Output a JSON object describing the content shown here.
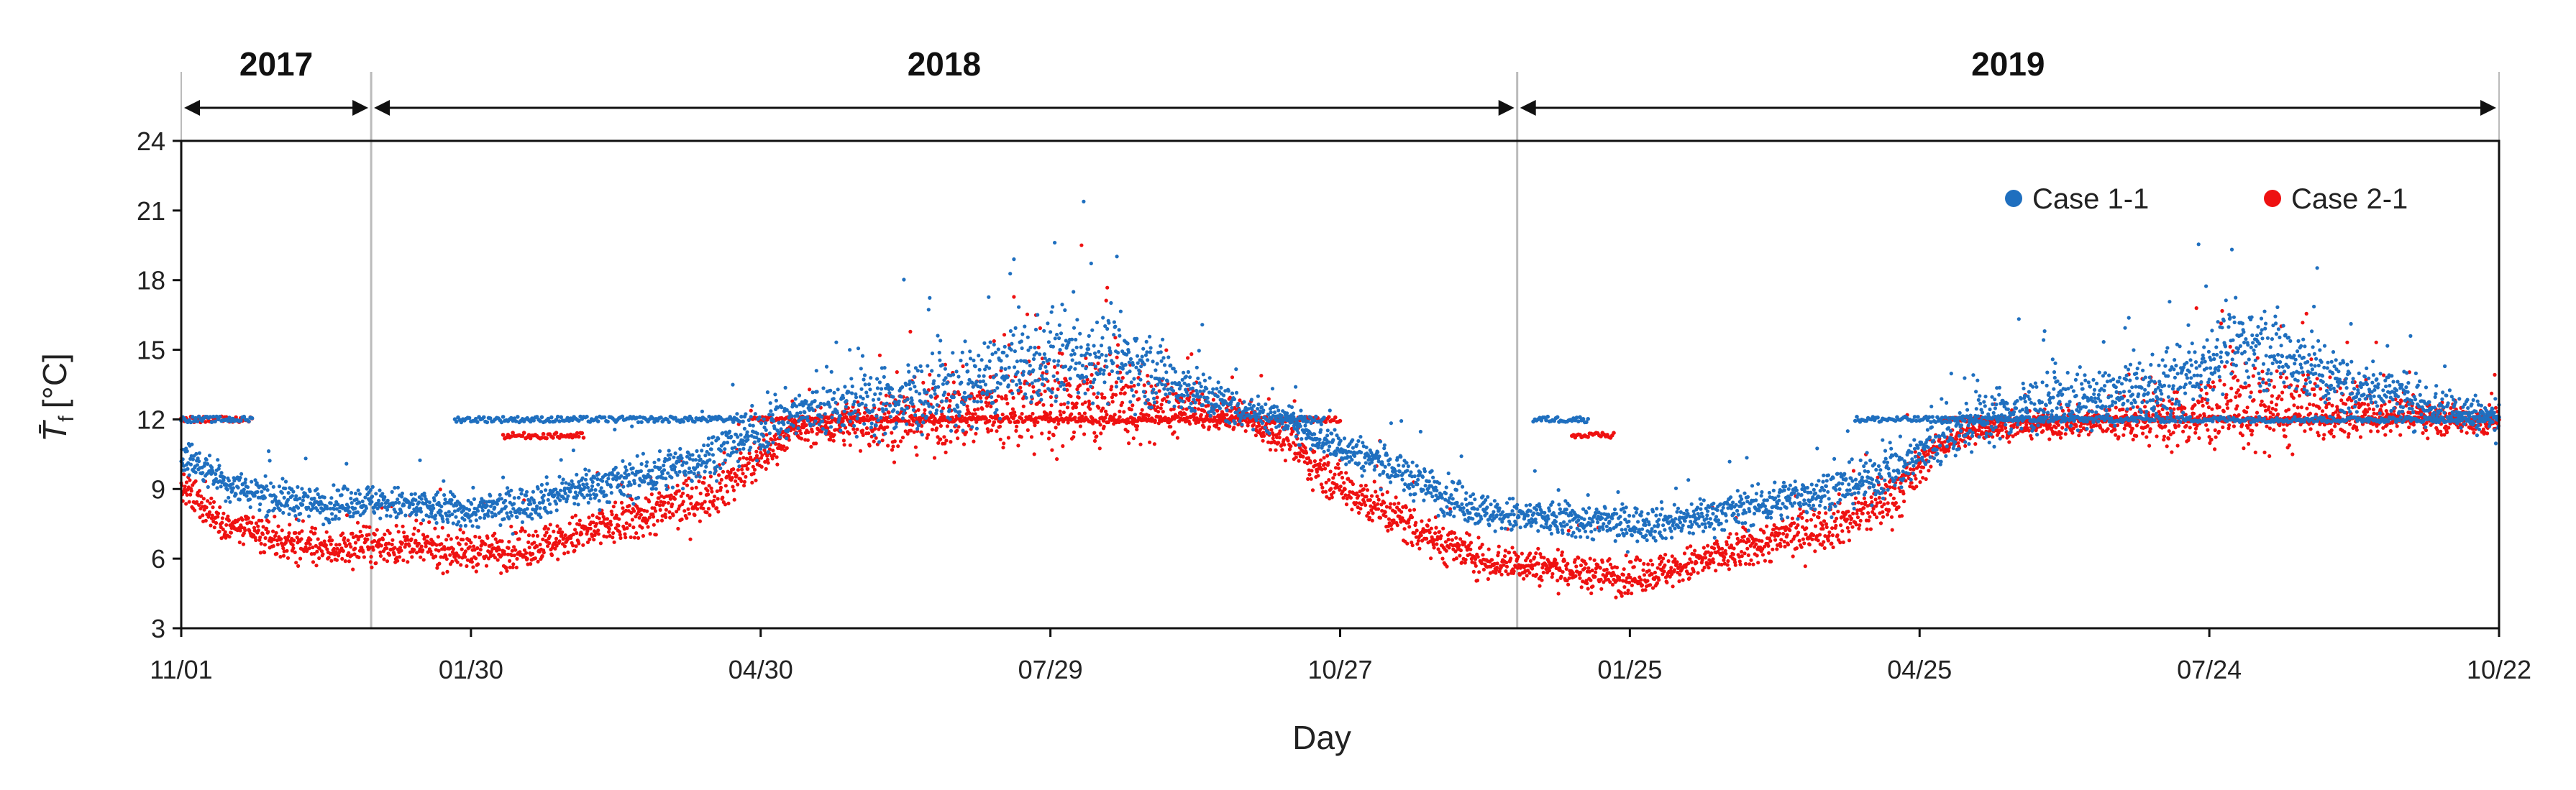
{
  "chart_data": {
    "type": "scatter",
    "title": "",
    "xlabel": "Day",
    "ylabel": "T̄",
    "ylabel_subscript": "f",
    "ylabel_unit": "[°C]",
    "ylim": [
      3,
      24
    ],
    "yticks": [
      3,
      6,
      9,
      12,
      15,
      18,
      21,
      24
    ],
    "x_range_days": [
      0,
      720
    ],
    "xticks": [
      {
        "day": 0,
        "label": "11/01"
      },
      {
        "day": 90,
        "label": "01/30"
      },
      {
        "day": 180,
        "label": "04/30"
      },
      {
        "day": 270,
        "label": "07/29"
      },
      {
        "day": 360,
        "label": "10/27"
      },
      {
        "day": 450,
        "label": "01/25"
      },
      {
        "day": 540,
        "label": "04/25"
      },
      {
        "day": 630,
        "label": "07/24"
      },
      {
        "day": 720,
        "label": "10/22"
      }
    ],
    "year_spans": [
      {
        "label": "2017",
        "start_day": 0,
        "end_day": 59
      },
      {
        "label": "2018",
        "start_day": 59,
        "end_day": 415
      },
      {
        "label": "2019",
        "start_day": 415,
        "end_day": 720
      }
    ],
    "legend_position": "top-right",
    "series": [
      {
        "name": "Case 1-1",
        "color": "#1f6fbf",
        "points_per_day": 6,
        "days": [
          0,
          15,
          30,
          45,
          58,
          75,
          90,
          105,
          120,
          140,
          160,
          175,
          190,
          205,
          220,
          240,
          255,
          270,
          285,
          300,
          315,
          330,
          345,
          352,
          360,
          375,
          390,
          405,
          415,
          435,
          450,
          465,
          480,
          500,
          520,
          535,
          545,
          560,
          580,
          600,
          620,
          630,
          640,
          655,
          670,
          685,
          700,
          710,
          720
        ],
        "trend": [
          10.5,
          9.2,
          8.6,
          8.3,
          8.5,
          8.2,
          8.0,
          8.3,
          8.9,
          9.4,
          10.2,
          11.2,
          12.2,
          12.6,
          12.8,
          13.2,
          14.0,
          14.5,
          14.8,
          14.2,
          13.2,
          12.4,
          11.9,
          11.3,
          10.8,
          10.0,
          8.9,
          8.0,
          7.8,
          7.6,
          7.5,
          7.6,
          8.0,
          8.6,
          9.2,
          10.0,
          11.0,
          12.1,
          12.7,
          13.0,
          13.5,
          14.6,
          15.3,
          14.8,
          13.6,
          13.1,
          12.6,
          12.3,
          12.0
        ],
        "spread": [
          1.0,
          0.9,
          1.0,
          0.9,
          0.9,
          1.0,
          0.9,
          1.0,
          1.0,
          1.1,
          1.2,
          1.3,
          1.4,
          1.6,
          2.0,
          2.2,
          2.4,
          2.5,
          2.4,
          2.0,
          1.4,
          1.0,
          0.8,
          0.9,
          1.0,
          1.1,
          1.1,
          1.0,
          1.0,
          1.0,
          1.0,
          1.0,
          1.0,
          1.1,
          1.2,
          1.4,
          1.5,
          1.5,
          1.6,
          1.6,
          1.8,
          2.0,
          2.2,
          2.2,
          1.8,
          1.5,
          1.3,
          1.1,
          1.0
        ],
        "setpoint_segments": [
          {
            "start_day": 0,
            "end_day": 22,
            "value": 12.0
          },
          {
            "start_day": 85,
            "end_day": 175,
            "value": 12.0
          },
          {
            "start_day": 340,
            "end_day": 355,
            "value": 12.0
          },
          {
            "start_day": 420,
            "end_day": 437,
            "value": 12.0
          },
          {
            "start_day": 520,
            "end_day": 720,
            "value": 12.0
          }
        ]
      },
      {
        "name": "Case 2-1",
        "color": "#ee1111",
        "points_per_day": 6,
        "days": [
          0,
          15,
          30,
          45,
          58,
          75,
          90,
          105,
          120,
          140,
          160,
          175,
          190,
          205,
          220,
          240,
          255,
          270,
          285,
          300,
          315,
          330,
          345,
          352,
          360,
          375,
          390,
          405,
          415,
          435,
          450,
          465,
          480,
          500,
          520,
          535,
          545,
          560,
          580,
          600,
          620,
          630,
          640,
          655,
          670,
          685,
          700,
          710,
          720
        ],
        "trend": [
          9.0,
          7.4,
          6.8,
          6.4,
          6.6,
          6.5,
          6.3,
          6.4,
          6.9,
          7.7,
          8.6,
          9.8,
          11.5,
          11.8,
          12.0,
          12.2,
          12.6,
          12.8,
          12.8,
          12.6,
          12.3,
          12.1,
          10.9,
          10.0,
          9.2,
          8.0,
          6.8,
          5.9,
          5.8,
          5.4,
          5.2,
          5.6,
          6.2,
          7.0,
          7.8,
          9.0,
          10.8,
          11.6,
          11.8,
          11.9,
          12.0,
          12.3,
          12.6,
          12.4,
          12.3,
          12.2,
          12.1,
          12.0,
          11.9
        ],
        "spread": [
          1.0,
          0.9,
          1.0,
          1.0,
          1.0,
          1.1,
          1.0,
          1.1,
          1.1,
          1.3,
          1.4,
          1.5,
          0.6,
          1.2,
          1.8,
          2.0,
          2.6,
          2.8,
          2.6,
          2.0,
          1.2,
          0.7,
          1.0,
          1.1,
          1.2,
          1.3,
          1.2,
          1.0,
          1.0,
          1.0,
          1.0,
          1.0,
          1.1,
          1.2,
          1.4,
          1.5,
          0.6,
          0.6,
          0.7,
          1.0,
          1.6,
          2.0,
          2.4,
          2.4,
          1.6,
          1.0,
          0.9,
          0.9,
          0.9
        ],
        "setpoint_segments": [
          {
            "start_day": 0,
            "end_day": 22,
            "value": 12.0
          },
          {
            "start_day": 100,
            "end_day": 125,
            "value": 11.3
          },
          {
            "start_day": 177,
            "end_day": 360,
            "value": 12.0
          },
          {
            "start_day": 432,
            "end_day": 445,
            "value": 11.3
          },
          {
            "start_day": 547,
            "end_day": 720,
            "value": 12.0
          }
        ]
      }
    ]
  }
}
